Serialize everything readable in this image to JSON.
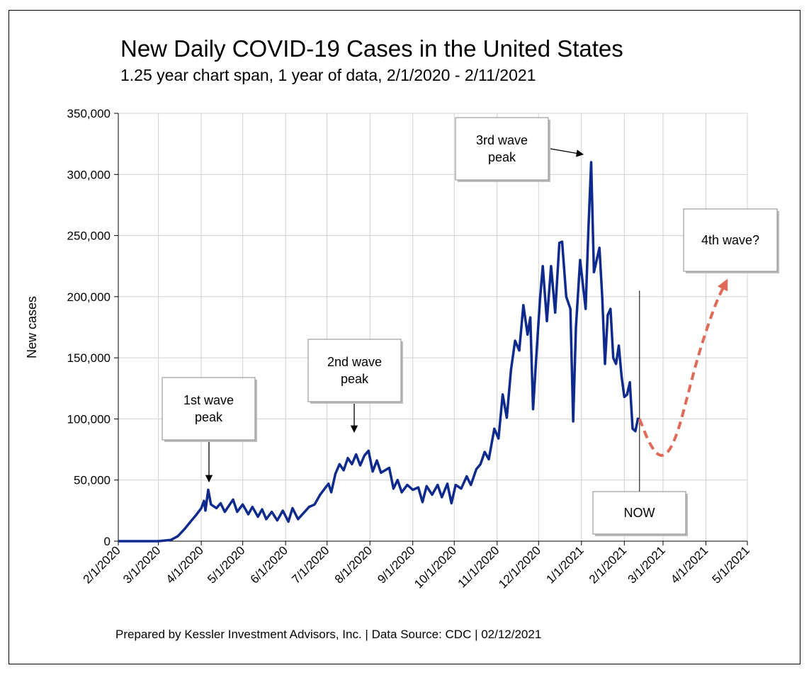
{
  "title": "New Daily COVID-19 Cases in the United States",
  "subtitle": "1.25 year chart span, 1 year of data, 2/1/2020 - 2/11/2021",
  "footer": "Prepared by Kessler Investment Advisors, Inc. | Data Source: CDC | 02/12/2021",
  "colors": {
    "series": "#0e2a8c",
    "projection": "#e06a5a",
    "grid": "#d0d0d0"
  },
  "chart_data": {
    "type": "line",
    "ylabel": "New cases",
    "xlabel": "",
    "ylim": [
      0,
      350000
    ],
    "y_ticks": [
      0,
      50000,
      100000,
      150000,
      200000,
      250000,
      300000,
      350000
    ],
    "y_tick_labels": [
      "0",
      "50,000",
      "100,000",
      "150,000",
      "200,000",
      "250,000",
      "300,000",
      "350,000"
    ],
    "x_range": [
      "2020-02-01",
      "2021-05-01"
    ],
    "x_ticks": [
      "2020-02-01",
      "2020-03-01",
      "2020-04-01",
      "2020-05-01",
      "2020-06-01",
      "2020-07-01",
      "2020-08-01",
      "2020-09-01",
      "2020-10-01",
      "2020-11-01",
      "2020-12-01",
      "2021-01-01",
      "2021-02-01",
      "2021-03-01",
      "2021-04-01",
      "2021-05-01"
    ],
    "x_tick_labels": [
      "2/1/2020",
      "3/1/2020",
      "4/1/2020",
      "5/1/2020",
      "6/1/2020",
      "7/1/2020",
      "8/1/2020",
      "9/1/2020",
      "10/1/2020",
      "11/1/2020",
      "12/1/2020",
      "1/1/2021",
      "2/1/2021",
      "3/1/2021",
      "4/1/2021",
      "5/1/2021"
    ],
    "grid": true,
    "series": [
      {
        "points": [
          [
            "2020-02-01",
            0
          ],
          [
            "2020-03-01",
            0
          ],
          [
            "2020-03-10",
            1000
          ],
          [
            "2020-03-15",
            4000
          ],
          [
            "2020-03-20",
            10000
          ],
          [
            "2020-03-25",
            17000
          ],
          [
            "2020-03-28",
            21000
          ],
          [
            "2020-04-01",
            27000
          ],
          [
            "2020-04-03",
            33000
          ],
          [
            "2020-04-04",
            25000
          ],
          [
            "2020-04-06",
            42000
          ],
          [
            "2020-04-08",
            30000
          ],
          [
            "2020-04-12",
            27000
          ],
          [
            "2020-04-15",
            31000
          ],
          [
            "2020-04-18",
            24000
          ],
          [
            "2020-04-21",
            29000
          ],
          [
            "2020-04-24",
            34000
          ],
          [
            "2020-04-27",
            24000
          ],
          [
            "2020-05-01",
            30000
          ],
          [
            "2020-05-05",
            22000
          ],
          [
            "2020-05-08",
            28000
          ],
          [
            "2020-05-12",
            20000
          ],
          [
            "2020-05-15",
            26000
          ],
          [
            "2020-05-18",
            18000
          ],
          [
            "2020-05-22",
            24000
          ],
          [
            "2020-05-26",
            17000
          ],
          [
            "2020-05-30",
            25000
          ],
          [
            "2020-06-03",
            16000
          ],
          [
            "2020-06-06",
            27000
          ],
          [
            "2020-06-10",
            18000
          ],
          [
            "2020-06-14",
            23000
          ],
          [
            "2020-06-18",
            28000
          ],
          [
            "2020-06-22",
            30000
          ],
          [
            "2020-06-26",
            38000
          ],
          [
            "2020-06-30",
            44000
          ],
          [
            "2020-07-02",
            47000
          ],
          [
            "2020-07-04",
            40000
          ],
          [
            "2020-07-07",
            55000
          ],
          [
            "2020-07-10",
            63000
          ],
          [
            "2020-07-13",
            58000
          ],
          [
            "2020-07-16",
            68000
          ],
          [
            "2020-07-19",
            63000
          ],
          [
            "2020-07-22",
            71000
          ],
          [
            "2020-07-25",
            62000
          ],
          [
            "2020-07-28",
            70000
          ],
          [
            "2020-07-31",
            74000
          ],
          [
            "2020-08-03",
            57000
          ],
          [
            "2020-08-06",
            66000
          ],
          [
            "2020-08-09",
            56000
          ],
          [
            "2020-08-12",
            58000
          ],
          [
            "2020-08-15",
            60000
          ],
          [
            "2020-08-18",
            43000
          ],
          [
            "2020-08-21",
            50000
          ],
          [
            "2020-08-24",
            40000
          ],
          [
            "2020-08-28",
            46000
          ],
          [
            "2020-09-01",
            42000
          ],
          [
            "2020-09-05",
            44000
          ],
          [
            "2020-09-08",
            32000
          ],
          [
            "2020-09-11",
            45000
          ],
          [
            "2020-09-15",
            38000
          ],
          [
            "2020-09-19",
            46000
          ],
          [
            "2020-09-22",
            36000
          ],
          [
            "2020-09-26",
            47000
          ],
          [
            "2020-09-29",
            31000
          ],
          [
            "2020-10-02",
            46000
          ],
          [
            "2020-10-06",
            43000
          ],
          [
            "2020-10-10",
            53000
          ],
          [
            "2020-10-13",
            46000
          ],
          [
            "2020-10-17",
            59000
          ],
          [
            "2020-10-20",
            63000
          ],
          [
            "2020-10-23",
            73000
          ],
          [
            "2020-10-26",
            67000
          ],
          [
            "2020-10-30",
            92000
          ],
          [
            "2020-11-02",
            84000
          ],
          [
            "2020-11-05",
            120000
          ],
          [
            "2020-11-08",
            101000
          ],
          [
            "2020-11-11",
            140000
          ],
          [
            "2020-11-14",
            164000
          ],
          [
            "2020-11-17",
            156000
          ],
          [
            "2020-11-20",
            193000
          ],
          [
            "2020-11-23",
            169000
          ],
          [
            "2020-11-25",
            183000
          ],
          [
            "2020-11-27",
            108000
          ],
          [
            "2020-11-29",
            145000
          ],
          [
            "2020-12-02",
            198000
          ],
          [
            "2020-12-04",
            225000
          ],
          [
            "2020-12-07",
            180000
          ],
          [
            "2020-12-10",
            225000
          ],
          [
            "2020-12-13",
            187000
          ],
          [
            "2020-12-16",
            244000
          ],
          [
            "2020-12-18",
            245000
          ],
          [
            "2020-12-21",
            200000
          ],
          [
            "2020-12-24",
            190000
          ],
          [
            "2020-12-26",
            98000
          ],
          [
            "2020-12-28",
            175000
          ],
          [
            "2020-12-31",
            230000
          ],
          [
            "2021-01-02",
            210000
          ],
          [
            "2021-01-04",
            190000
          ],
          [
            "2021-01-06",
            255000
          ],
          [
            "2021-01-08",
            310000
          ],
          [
            "2021-01-10",
            220000
          ],
          [
            "2021-01-12",
            230000
          ],
          [
            "2021-01-14",
            240000
          ],
          [
            "2021-01-16",
            200000
          ],
          [
            "2021-01-18",
            145000
          ],
          [
            "2021-01-20",
            185000
          ],
          [
            "2021-01-22",
            190000
          ],
          [
            "2021-01-24",
            150000
          ],
          [
            "2021-01-26",
            145000
          ],
          [
            "2021-01-28",
            160000
          ],
          [
            "2021-01-30",
            135000
          ],
          [
            "2021-02-01",
            118000
          ],
          [
            "2021-02-03",
            120000
          ],
          [
            "2021-02-05",
            130000
          ],
          [
            "2021-02-07",
            92000
          ],
          [
            "2021-02-09",
            90000
          ],
          [
            "2021-02-11",
            101000
          ]
        ]
      }
    ],
    "projection": [
      [
        "2021-02-12",
        100000
      ],
      [
        "2021-02-19",
        80000
      ],
      [
        "2021-02-26",
        69000
      ],
      [
        "2021-03-05",
        72000
      ],
      [
        "2021-03-12",
        90000
      ],
      [
        "2021-03-19",
        120000
      ],
      [
        "2021-03-26",
        150000
      ],
      [
        "2021-04-02",
        175000
      ],
      [
        "2021-04-09",
        197000
      ],
      [
        "2021-04-16",
        213000
      ]
    ],
    "now_line": "2021-02-12",
    "annotations": [
      {
        "text": [
          "1st wave",
          "peak"
        ]
      },
      {
        "text": [
          "2nd wave",
          "peak"
        ]
      },
      {
        "text": [
          "3rd wave",
          "peak"
        ]
      },
      {
        "text": [
          "4th wave?"
        ]
      },
      {
        "text": [
          "NOW"
        ]
      }
    ]
  }
}
